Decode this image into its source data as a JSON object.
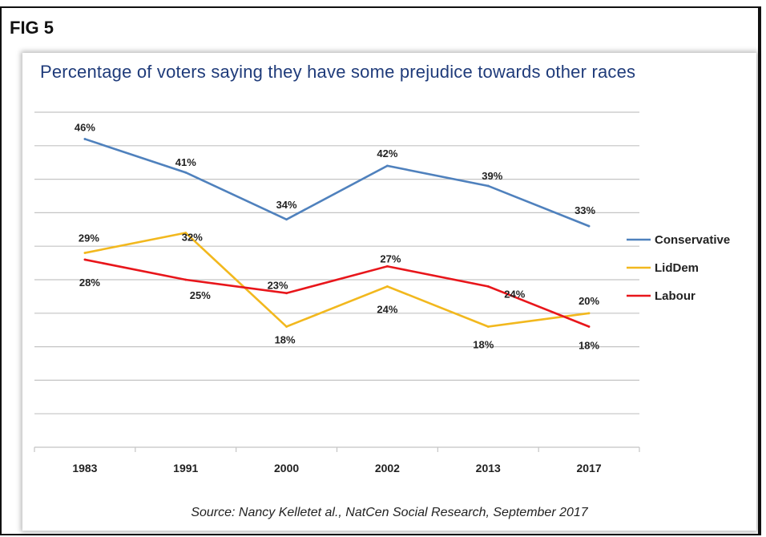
{
  "figure": {
    "label": "FIG 5"
  },
  "chart_data": {
    "type": "line",
    "title": "Percentage of voters saying they have some prejudice towards other races",
    "categories": [
      "1983",
      "1991",
      "2000",
      "2002",
      "2013",
      "2017"
    ],
    "series": [
      {
        "name": "Conservative",
        "color": "#4f81bd",
        "values": [
          46,
          41,
          34,
          42,
          39,
          33
        ]
      },
      {
        "name": "LidDem",
        "color": "#f2b81e",
        "values": [
          29,
          32,
          18,
          24,
          18,
          20
        ]
      },
      {
        "name": "Labour",
        "color": "#e8161b",
        "values": [
          28,
          25,
          23,
          27,
          24,
          18
        ]
      }
    ],
    "ylim": [
      0,
      50
    ],
    "grid": true,
    "legend_position": "right",
    "source": "Source: Nancy Kelletet al., NatCen Social Research, September 2017"
  }
}
